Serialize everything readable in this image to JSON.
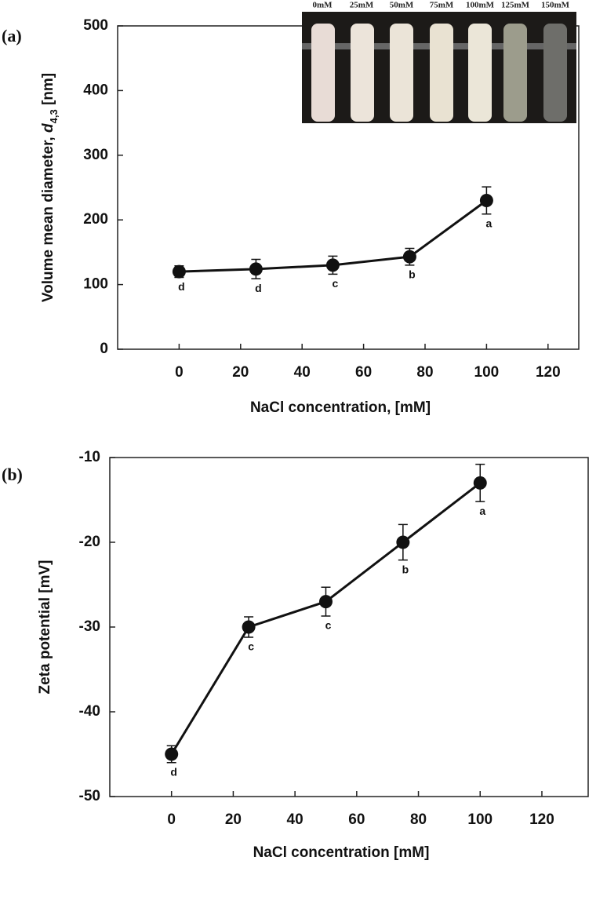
{
  "chart_data": [
    {
      "type": "line",
      "panel": "(a)",
      "ylabel": "Volume mean diameter, ",
      "ylabel_var": "d",
      "ylabel_sub": "4,3",
      "ylabel_unit": " [nm]",
      "xlabel": "NaCl concentration, [mM]",
      "x": [
        0,
        25,
        50,
        75,
        100
      ],
      "values": [
        120,
        124,
        130,
        143,
        230
      ],
      "errors": [
        9,
        15,
        14,
        13,
        21
      ],
      "point_labels": [
        "d",
        "d",
        "c",
        "b",
        "a"
      ],
      "color": "#111111",
      "xlim": [
        -20,
        130
      ],
      "xticks": [
        0,
        20,
        40,
        60,
        80,
        100,
        120
      ],
      "ylim": [
        0,
        500
      ],
      "yticks": [
        0,
        100,
        200,
        300,
        400,
        500
      ],
      "grid": false,
      "inset_labels": [
        "0mM",
        "25mM",
        "50mM",
        "75mM",
        "100mM",
        "125mM",
        "150mM"
      ]
    },
    {
      "type": "line",
      "panel": "(b)",
      "ylabel": "Zeta potential [mV]",
      "xlabel": "NaCl concentration [mM]",
      "x": [
        0,
        25,
        50,
        75,
        100
      ],
      "values": [
        -45,
        -30,
        -27,
        -20,
        -13
      ],
      "errors": [
        1,
        1.2,
        1.7,
        2.1,
        2.2
      ],
      "point_labels": [
        "d",
        "c",
        "c",
        "b",
        "a"
      ],
      "color": "#111111",
      "xlim": [
        -20,
        135
      ],
      "xticks": [
        0,
        20,
        40,
        60,
        80,
        100,
        120
      ],
      "ylim": [
        -50,
        -10
      ],
      "yticks": [
        -50,
        -40,
        -30,
        -20,
        -10
      ],
      "grid": false
    }
  ]
}
